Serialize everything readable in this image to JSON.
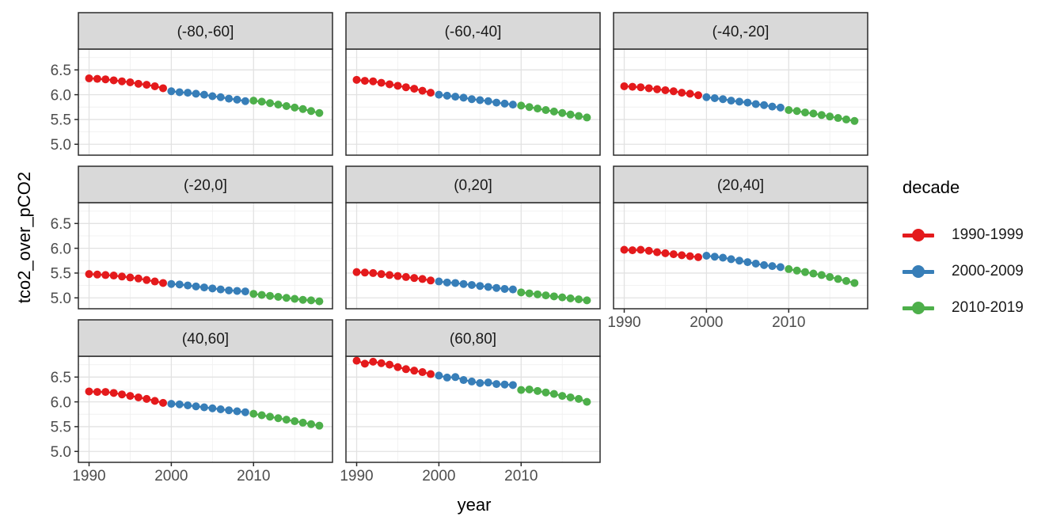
{
  "chart_data": {
    "type": "scatter",
    "xlabel": "year",
    "ylabel": "tco2_over_pCO2",
    "grid": true,
    "legend_position": "right",
    "x_ticks": [
      1990,
      2000,
      2010
    ],
    "x_minor_ticks": [
      1995,
      2005,
      2015
    ],
    "y_ticks": [
      6.5,
      6.0,
      5.5,
      5.0
    ],
    "y_tick_labels": [
      "6.5",
      "6.0",
      "5.5",
      "5.0"
    ],
    "y_minor_ticks": [
      5.25,
      5.75,
      6.25,
      6.75
    ],
    "xlim": [
      1988.7,
      2019.6
    ],
    "ylim": [
      4.78,
      6.92
    ],
    "x": [
      1990,
      1991,
      1992,
      1993,
      1994,
      1995,
      1996,
      1997,
      1998,
      1999,
      2000,
      2001,
      2002,
      2003,
      2004,
      2005,
      2006,
      2007,
      2008,
      2009,
      2010,
      2011,
      2012,
      2013,
      2014,
      2015,
      2016,
      2017,
      2018
    ],
    "legend": {
      "title": "decade",
      "entries": [
        {
          "label": "1990-1999",
          "color": "#E41A1C",
          "years": [
            1990,
            1999
          ]
        },
        {
          "label": "2000-2009",
          "color": "#377EB8",
          "years": [
            2000,
            2009
          ]
        },
        {
          "label": "2010-2019",
          "color": "#4DAF4A",
          "years": [
            2010,
            2019
          ]
        }
      ]
    },
    "style": {
      "strip_fill": "#D9D9D9",
      "strip_text_color": "#1A1A1A",
      "panel_border_color": "#2B2B2B",
      "major_grid_color": "#E2E2E2",
      "minor_grid_color": "#F0F0F0",
      "tick_label_color": "#4D4D4D",
      "panel_fill": "#FFFFFF"
    },
    "facets": [
      {
        "label": "(-80,-60]",
        "values": [
          6.33,
          6.32,
          6.31,
          6.29,
          6.27,
          6.25,
          6.22,
          6.2,
          6.17,
          6.13,
          6.07,
          6.05,
          6.04,
          6.02,
          6.0,
          5.97,
          5.95,
          5.92,
          5.9,
          5.87,
          5.88,
          5.86,
          5.83,
          5.8,
          5.77,
          5.74,
          5.71,
          5.67,
          5.63
        ]
      },
      {
        "label": "(-60,-40]",
        "values": [
          6.3,
          6.28,
          6.27,
          6.24,
          6.21,
          6.18,
          6.15,
          6.12,
          6.08,
          6.04,
          6.0,
          5.98,
          5.96,
          5.94,
          5.91,
          5.89,
          5.87,
          5.84,
          5.82,
          5.8,
          5.78,
          5.75,
          5.72,
          5.69,
          5.66,
          5.63,
          5.6,
          5.57,
          5.54
        ]
      },
      {
        "label": "(-40,-20]",
        "values": [
          6.17,
          6.16,
          6.15,
          6.13,
          6.11,
          6.09,
          6.07,
          6.04,
          6.02,
          5.99,
          5.95,
          5.93,
          5.91,
          5.88,
          5.86,
          5.84,
          5.81,
          5.79,
          5.76,
          5.74,
          5.69,
          5.67,
          5.64,
          5.62,
          5.59,
          5.56,
          5.53,
          5.5,
          5.47
        ]
      },
      {
        "label": "(-20,0]",
        "values": [
          5.48,
          5.47,
          5.46,
          5.45,
          5.43,
          5.41,
          5.39,
          5.36,
          5.33,
          5.3,
          5.28,
          5.27,
          5.25,
          5.23,
          5.21,
          5.19,
          5.17,
          5.15,
          5.14,
          5.13,
          5.08,
          5.06,
          5.04,
          5.02,
          5.0,
          4.98,
          4.96,
          4.95,
          4.93
        ]
      },
      {
        "label": "(0,20]",
        "values": [
          5.52,
          5.51,
          5.5,
          5.48,
          5.46,
          5.44,
          5.42,
          5.4,
          5.38,
          5.35,
          5.33,
          5.31,
          5.3,
          5.28,
          5.26,
          5.24,
          5.22,
          5.2,
          5.18,
          5.17,
          5.11,
          5.09,
          5.07,
          5.05,
          5.03,
          5.01,
          4.99,
          4.97,
          4.95
        ]
      },
      {
        "label": "(20,40]",
        "values": [
          5.97,
          5.96,
          5.97,
          5.95,
          5.92,
          5.9,
          5.88,
          5.86,
          5.84,
          5.82,
          5.85,
          5.83,
          5.81,
          5.78,
          5.75,
          5.72,
          5.69,
          5.66,
          5.64,
          5.62,
          5.58,
          5.55,
          5.52,
          5.49,
          5.46,
          5.42,
          5.38,
          5.34,
          5.3
        ]
      },
      {
        "label": "(40,60]",
        "values": [
          6.21,
          6.2,
          6.2,
          6.18,
          6.15,
          6.12,
          6.09,
          6.06,
          6.02,
          5.98,
          5.96,
          5.95,
          5.93,
          5.91,
          5.89,
          5.87,
          5.85,
          5.83,
          5.81,
          5.79,
          5.76,
          5.73,
          5.7,
          5.67,
          5.64,
          5.61,
          5.58,
          5.55,
          5.52
        ]
      },
      {
        "label": "(60,80]",
        "values": [
          6.83,
          6.77,
          6.81,
          6.78,
          6.75,
          6.7,
          6.66,
          6.63,
          6.6,
          6.56,
          6.53,
          6.49,
          6.5,
          6.44,
          6.41,
          6.38,
          6.39,
          6.36,
          6.35,
          6.34,
          6.24,
          6.25,
          6.22,
          6.19,
          6.16,
          6.12,
          6.09,
          6.06,
          6.0
        ]
      }
    ]
  }
}
